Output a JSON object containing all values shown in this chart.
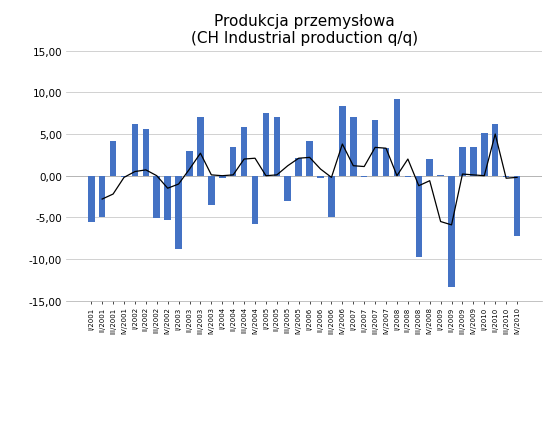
{
  "title_line1": "Produkcja przemysłowa",
  "title_line2": "(CH Industrial production q/q)",
  "bar_color": "#4472C4",
  "line_color": "#000000",
  "ylim": [
    -15,
    15
  ],
  "yticks": [
    -15,
    -10,
    -5,
    0,
    5,
    10,
    15
  ],
  "ytick_labels": [
    "-15,00",
    "-10,00",
    "-5,00",
    "0,00",
    "5,00",
    "10,00",
    "15,00"
  ],
  "categories": [
    "I/2001",
    "II/2001",
    "III/2001",
    "IV/2001",
    "I/2002",
    "II/2002",
    "III/2002",
    "IV/2002",
    "I/2003",
    "II/2003",
    "III/2003",
    "IV/2003",
    "I/2004",
    "II/2004",
    "III/2004",
    "IV/2004",
    "I/2005",
    "II/2005",
    "III/2005",
    "IV/2005",
    "I/2006",
    "II/2006",
    "III/2006",
    "IV/2006",
    "I/2007",
    "II/2007",
    "III/2007",
    "IV/2007",
    "I/2008",
    "II/2008",
    "III/2008",
    "IV/2008",
    "I/2009",
    "II/2009",
    "III/2009",
    "IV/2009",
    "I/2010",
    "II/2010",
    "III/2010",
    "IV/2010"
  ],
  "bar_values": [
    -5.5,
    -5.0,
    4.2,
    -0.1,
    6.2,
    5.6,
    -5.1,
    -5.3,
    -8.8,
    3.0,
    7.1,
    -3.5,
    -0.3,
    3.4,
    5.9,
    -5.8,
    7.5,
    7.0,
    -3.0,
    2.1,
    4.2,
    -0.3,
    -5.0,
    8.4,
    7.0,
    -0.1,
    6.7,
    3.3,
    9.2,
    -0.1,
    -9.7,
    2.0,
    0.1,
    -13.3,
    3.4,
    3.4,
    5.1,
    6.2,
    -0.2,
    -7.2
  ],
  "line_values": [
    null,
    -2.8,
    -2.2,
    -0.2,
    0.5,
    0.7,
    0.0,
    -1.5,
    -1.0,
    0.8,
    2.7,
    0.1,
    0.0,
    0.1,
    2.0,
    2.1,
    0.0,
    0.1,
    1.2,
    2.1,
    2.2,
    0.8,
    -0.2,
    3.8,
    1.2,
    1.1,
    3.4,
    3.3,
    0.0,
    2.0,
    -1.2,
    -0.6,
    -5.5,
    -5.9,
    0.2,
    0.1,
    0.0,
    5.0,
    -0.3,
    -0.2
  ],
  "background_color": "#FFFFFF",
  "grid_color": "#BFBFBF",
  "title_fontsize": 11,
  "tick_fontsize": 7.5,
  "xtick_fontsize": 5.0
}
